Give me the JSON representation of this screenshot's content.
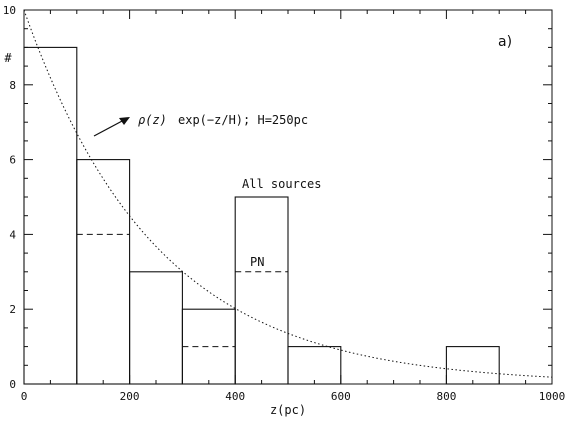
{
  "chart_data": {
    "type": "bar",
    "xlabel": "z(pc)",
    "ylabel": "#",
    "xlim": [
      0,
      1000
    ],
    "ylim": [
      0,
      10
    ],
    "x_ticks": [
      "0",
      "200",
      "400",
      "600",
      "800",
      "1000"
    ],
    "y_ticks": [
      "0",
      "2",
      "4",
      "6",
      "8",
      "10"
    ],
    "bins": [
      [
        0,
        100
      ],
      [
        100,
        200
      ],
      [
        200,
        300
      ],
      [
        300,
        400
      ],
      [
        400,
        500
      ],
      [
        500,
        600
      ],
      [
        600,
        700
      ],
      [
        700,
        800
      ],
      [
        800,
        900
      ],
      [
        900,
        1000
      ]
    ],
    "series": [
      {
        "name": "All sources",
        "style": "solid",
        "values": [
          9,
          6,
          3,
          2,
          5,
          1,
          0,
          0,
          1,
          0
        ]
      },
      {
        "name": "PN",
        "style": "dashed",
        "values": [
          0,
          4,
          0,
          1,
          3,
          0,
          0,
          0,
          0,
          0
        ]
      }
    ],
    "model_curve": {
      "style": "dotted",
      "label_rho": "ρ(z)",
      "label_rest": "exp(−z/H); H=250pc",
      "scale_height_pc": 250,
      "amplitude": 10
    },
    "panel_label": "a)",
    "grid": false
  }
}
